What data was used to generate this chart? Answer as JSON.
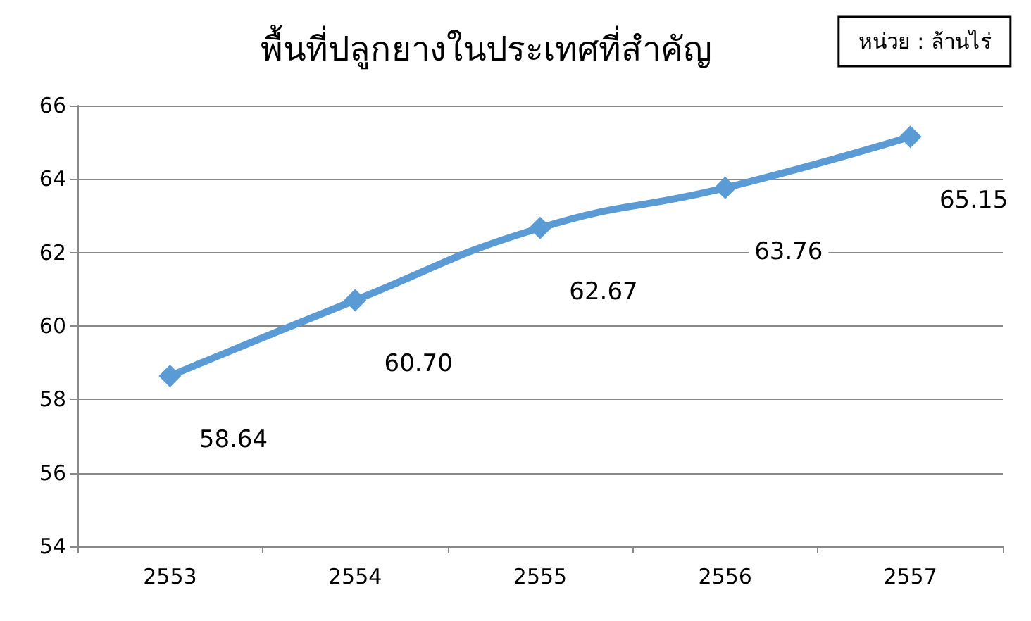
{
  "chart_data": {
    "type": "line",
    "title": "พื้นที่ปลูกยางในประเทศที่สำคัญ",
    "annotations": [
      "หน่วย : ล้านไร่"
    ],
    "categories": [
      "2553",
      "2554",
      "2555",
      "2556",
      "2557"
    ],
    "series": [
      {
        "color": "#5b9bd5",
        "values": [
          58.64,
          60.7,
          62.67,
          63.76,
          65.15
        ],
        "value_labels": [
          "58.64",
          "60.70",
          "62.67",
          "63.76",
          "65.15"
        ]
      }
    ],
    "ylim": [
      54,
      66
    ],
    "yticks": [
      54,
      56,
      58,
      60,
      62,
      64,
      66
    ],
    "grid": "y",
    "marker": "diamond",
    "line_style": "solid"
  }
}
